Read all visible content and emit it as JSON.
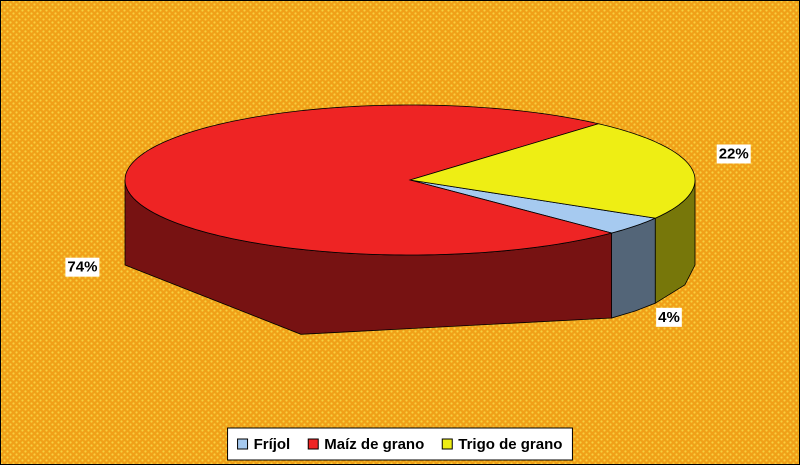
{
  "chart_data": {
    "type": "pie3d",
    "categories": [
      "Fríjol",
      "Maíz de grano",
      "Trigo de grano"
    ],
    "values": [
      4,
      74,
      22
    ],
    "value_labels": [
      "4%",
      "74%",
      "22%"
    ],
    "colors": [
      "#a6caf0",
      "#ee2424",
      "#eeee14"
    ],
    "legend": "bottom"
  }
}
